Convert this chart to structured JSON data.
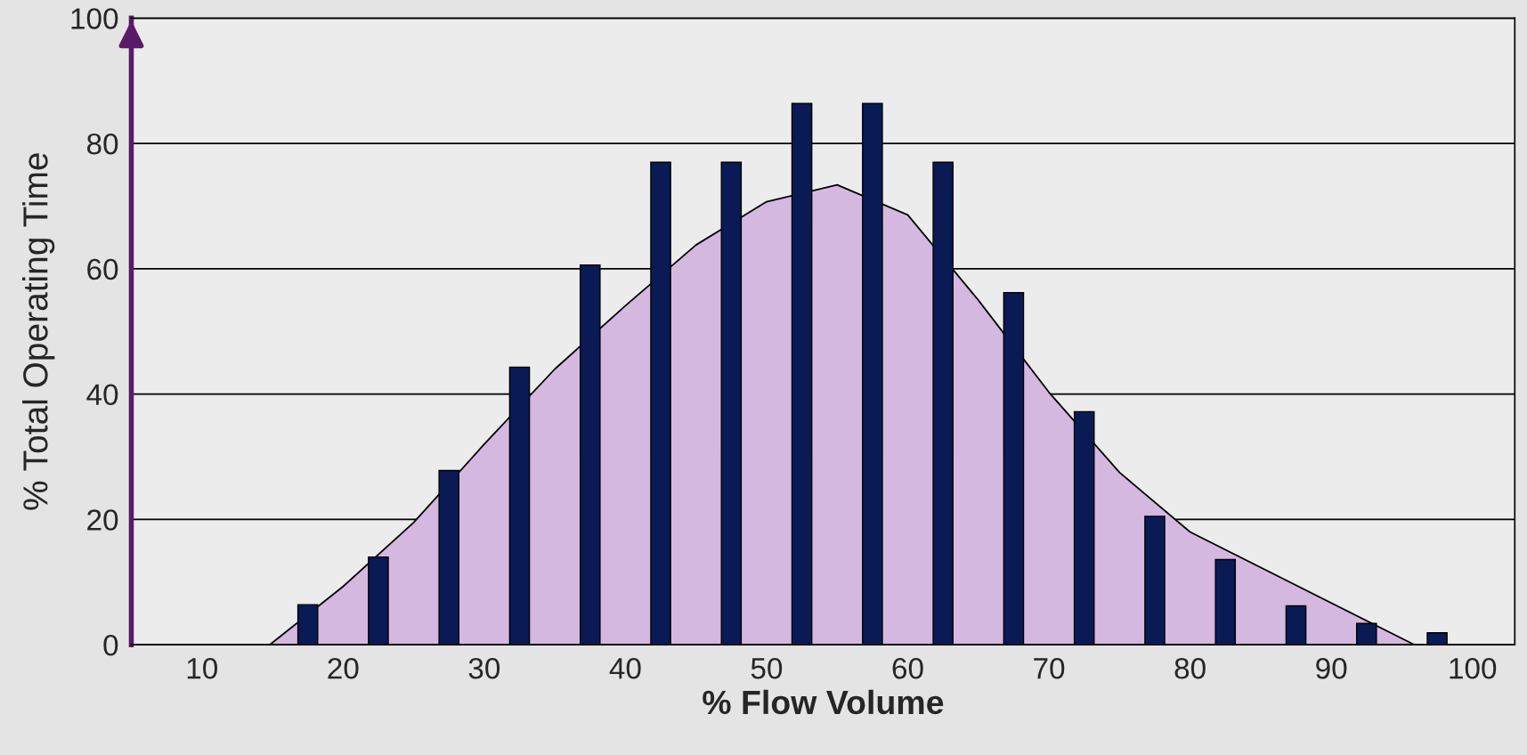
{
  "chart_data": {
    "type": "bar",
    "xlabel": "% Flow Volume",
    "ylabel": "% Total Operating Time",
    "xlim": [
      5,
      103
    ],
    "xticks": [
      10,
      20,
      30,
      40,
      50,
      60,
      70,
      80,
      90,
      100
    ],
    "ylim": [
      0,
      100
    ],
    "yticks": [
      0,
      20,
      40,
      60,
      80,
      100
    ],
    "grid": "y",
    "legend": false,
    "series": [
      {
        "type": "area",
        "color": "#d4b8e0",
        "x": [
          14.8,
          20,
          25,
          30,
          35,
          40,
          45,
          50,
          55,
          60,
          65,
          70,
          75,
          80,
          95.9
        ],
        "values": [
          0,
          9.3,
          19.5,
          32,
          44,
          54.1,
          63.8,
          70.7,
          73.4,
          68.6,
          55,
          40.3,
          27.5,
          18,
          0
        ]
      },
      {
        "color": "#0a1a55",
        "x": [
          17.5,
          22.5,
          27.5,
          32.5,
          37.5,
          42.5,
          47.5,
          52.5,
          57.5,
          62.5,
          67.5,
          72.5,
          77.5,
          82.5,
          87.5,
          92.5,
          97.5
        ],
        "values": [
          6.4,
          14,
          27.8,
          44.3,
          60.6,
          77,
          77,
          86.4,
          86.4,
          77,
          56.2,
          37.2,
          20.5,
          13.6,
          6.2,
          3.4,
          1.9
        ]
      }
    ]
  }
}
